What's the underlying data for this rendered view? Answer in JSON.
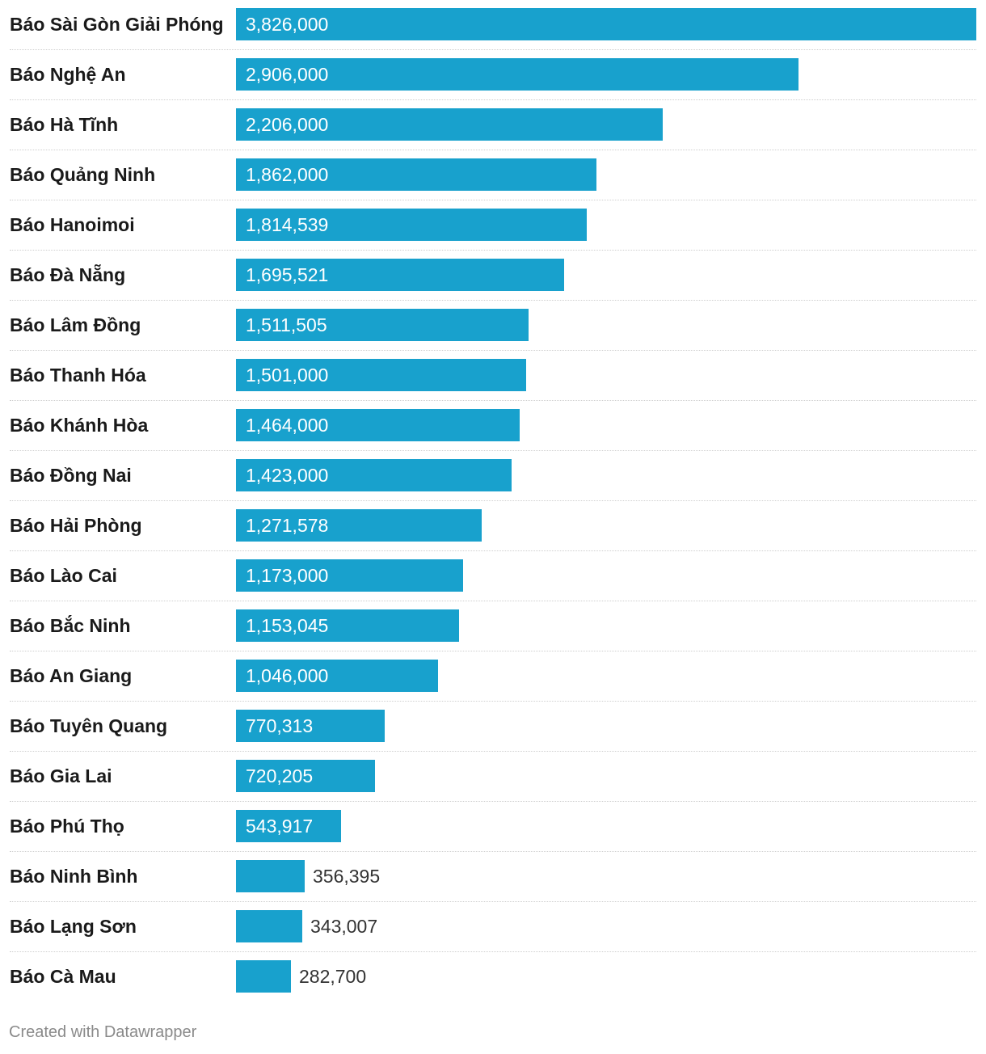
{
  "chart_data": {
    "type": "bar",
    "orientation": "horizontal",
    "bar_color": "#18a1cd",
    "categories": [
      "Báo Sài Gòn Giải Phóng",
      "Báo Nghệ An",
      "Báo Hà Tĩnh",
      "Báo Quảng Ninh",
      "Báo Hanoimoi",
      "Báo Đà Nẵng",
      "Báo Lâm Đồng",
      "Báo Thanh Hóa",
      "Báo Khánh Hòa",
      "Báo Đồng Nai",
      "Báo Hải Phòng",
      "Báo Lào Cai",
      "Báo Bắc Ninh",
      "Báo An Giang",
      "Báo Tuyên Quang",
      "Báo Gia Lai",
      "Báo Phú Thọ",
      "Báo Ninh Bình",
      "Báo Lạng Sơn",
      "Báo Cà Mau"
    ],
    "values": [
      3826000,
      2906000,
      2206000,
      1862000,
      1814539,
      1695521,
      1511505,
      1501000,
      1464000,
      1423000,
      1271578,
      1173000,
      1153045,
      1046000,
      770313,
      720205,
      543917,
      356395,
      343007,
      282700
    ],
    "value_labels": [
      "3,826,000",
      "2,906,000",
      "2,206,000",
      "1,862,000",
      "1,814,539",
      "1,695,521",
      "1,511,505",
      "1,501,000",
      "1,464,000",
      "1,423,000",
      "1,271,578",
      "1,173,000",
      "1,153,045",
      "1,046,000",
      "770,313",
      "720,205",
      "543,917",
      "356,395",
      "343,007",
      "282,700"
    ],
    "xlim": [
      0,
      3826000
    ],
    "title": "",
    "xlabel": "",
    "ylabel": ""
  },
  "footer": {
    "credit": "Created with Datawrapper"
  }
}
